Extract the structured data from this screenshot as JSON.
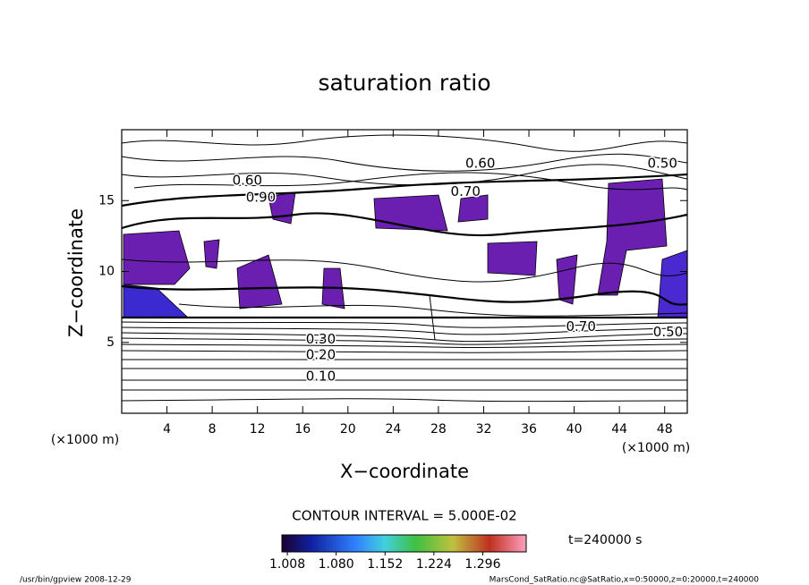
{
  "chart_data": {
    "type": "contour",
    "title": "saturation ratio",
    "xlabel": "X−coordinate",
    "ylabel": "Z−coordinate",
    "xunit": "(×1000 m)",
    "yunit": "(×1000 m)",
    "xlim": [
      0,
      50
    ],
    "xticks": [
      4,
      8,
      12,
      16,
      20,
      24,
      28,
      32,
      36,
      40,
      44,
      48
    ],
    "ylim": [
      0,
      20
    ],
    "yticks": [
      5,
      10,
      15
    ],
    "contour_labels": [
      {
        "text": "0.10",
        "x": 17.6,
        "y": 2.6
      },
      {
        "text": "0.20",
        "x": 17.6,
        "y": 4.1
      },
      {
        "text": "0.30",
        "x": 17.6,
        "y": 5.2
      },
      {
        "text": "0.60",
        "x": 31.7,
        "y": 17.6
      },
      {
        "text": "0.60",
        "x": 11.1,
        "y": 16.4
      },
      {
        "text": "0.70",
        "x": 30.4,
        "y": 15.6
      },
      {
        "text": "0.50",
        "x": 47.8,
        "y": 17.6
      },
      {
        "text": "0.50",
        "x": 48.3,
        "y": 5.7
      },
      {
        "text": "0.90",
        "x": 12.3,
        "y": 15.2
      },
      {
        "text": "0.70",
        "x": 40.6,
        "y": 6.1
      }
    ],
    "contour_interval": "CONTOUR INTERVAL = 5.000E-02",
    "time_label": "t=240000 s",
    "colorbar": {
      "lim": [
        1.0,
        1.36
      ],
      "ticks": [
        1.008,
        {
          "value": 1.08,
          "label": "1.080"
        },
        1.152,
        1.224,
        1.296
      ]
    },
    "footer_left": "/usr/bin/gpview  2008-12-29",
    "footer_right": "MarsCond_SatRatio.nc@SatRatio,x=0:50000,z=0:20000,t=240000"
  }
}
